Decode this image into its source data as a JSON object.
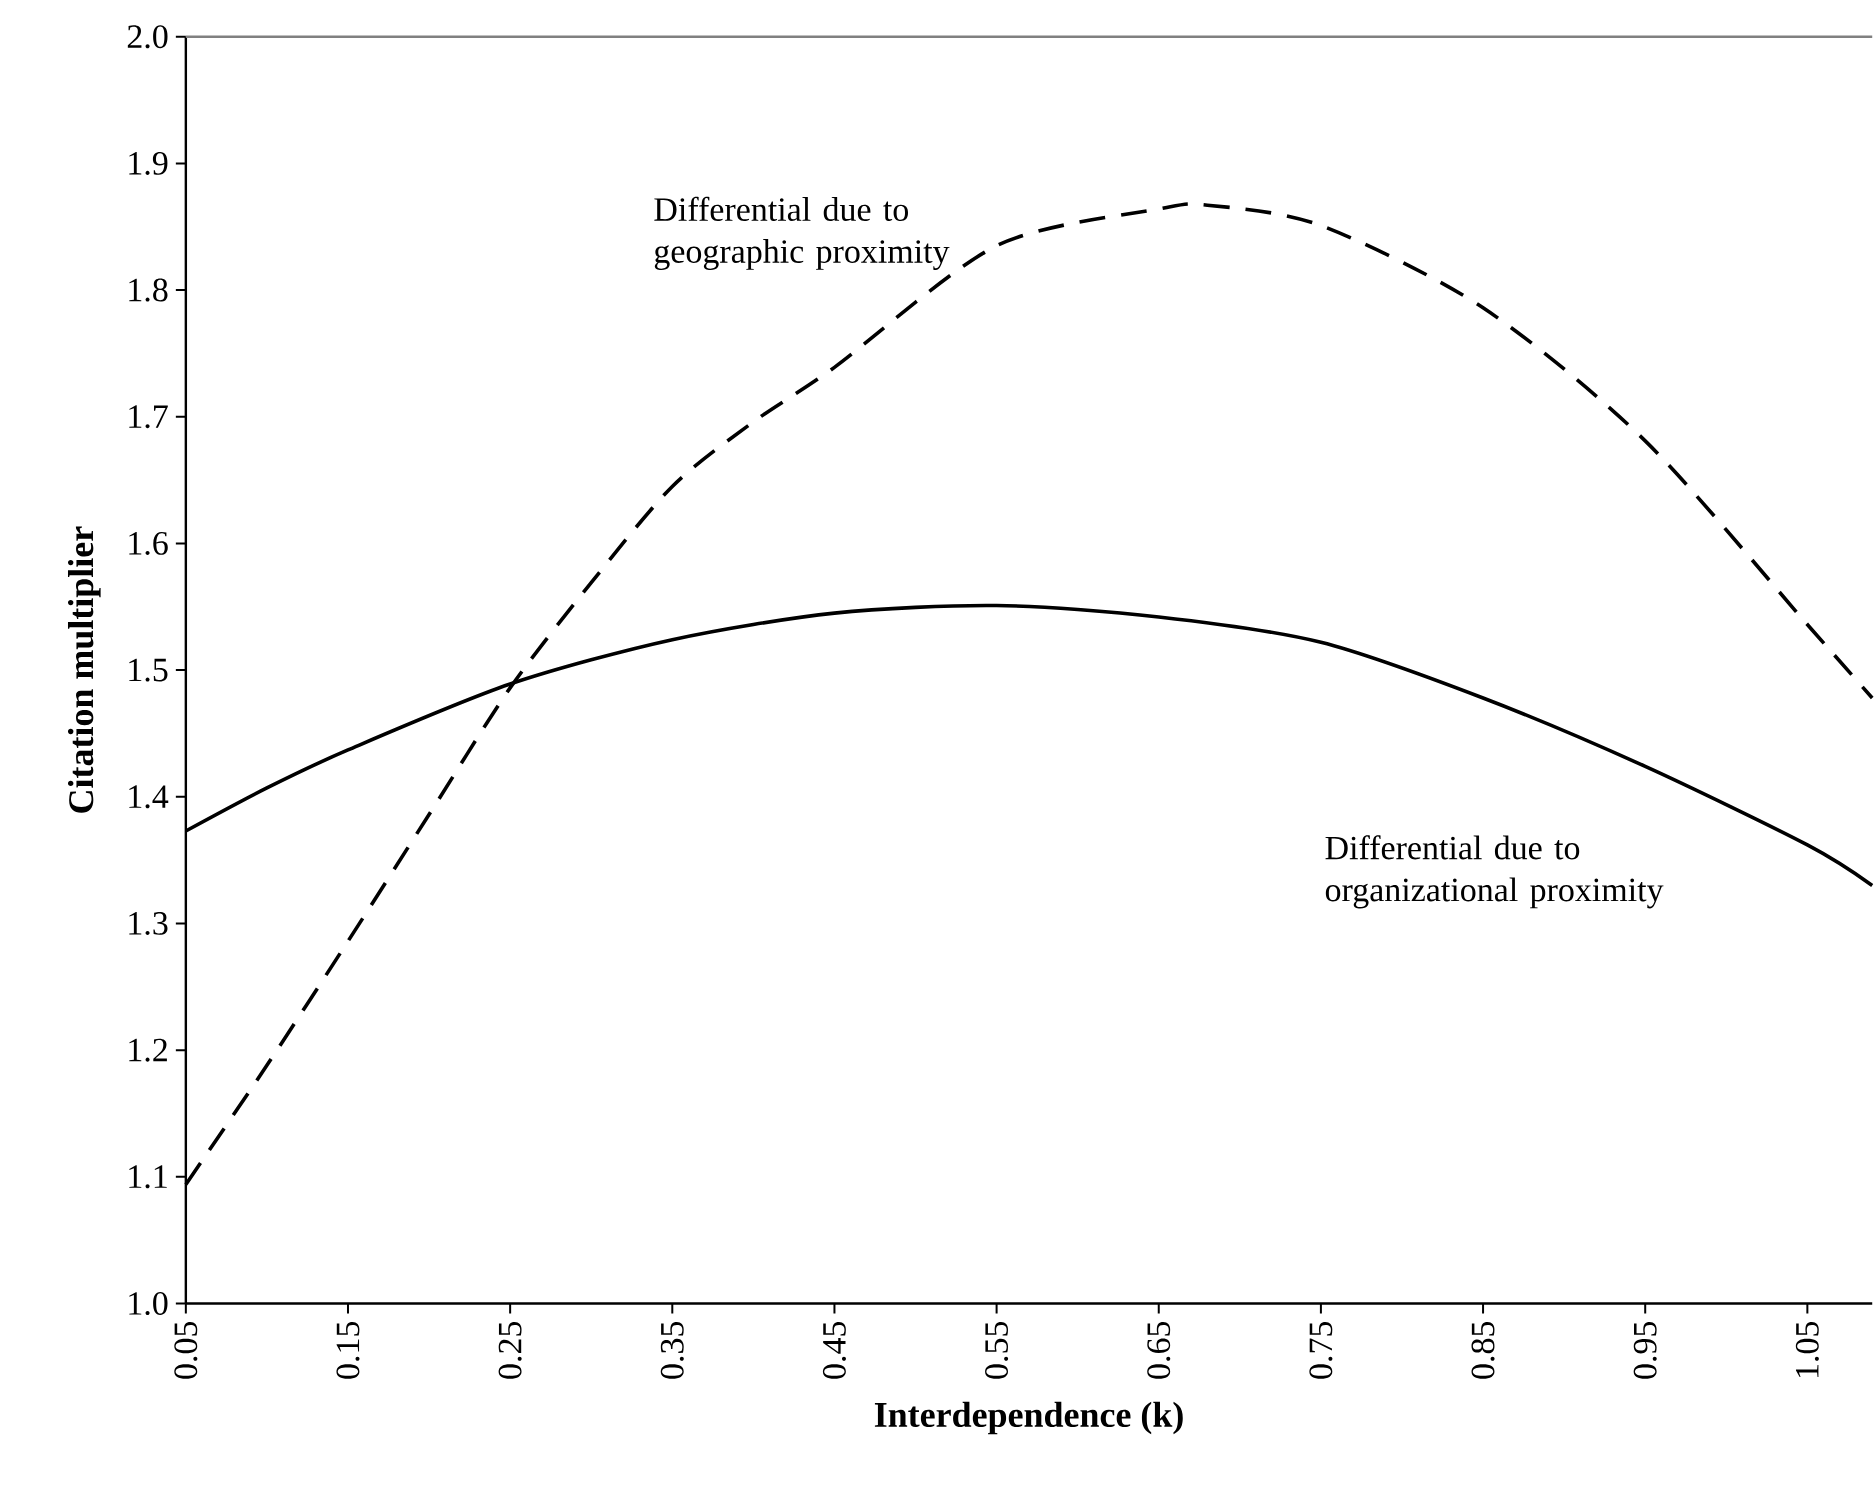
{
  "chart_data": {
    "type": "line",
    "xlabel": "Interdependence (k)",
    "ylabel": "Citation multiplier",
    "xlim": [
      0.05,
      1.09
    ],
    "ylim": [
      1.0,
      2.0
    ],
    "xticks": [
      0.05,
      0.15,
      0.25,
      0.35,
      0.45,
      0.55,
      0.65,
      0.75,
      0.85,
      0.95,
      1.05
    ],
    "yticks": [
      {
        "value": 1.0,
        "label": "1.0"
      },
      1.1,
      1.2,
      1.3,
      1.4,
      1.5,
      1.6,
      1.7,
      1.8,
      1.9,
      {
        "value": 2.0,
        "label": "2.0"
      }
    ],
    "legend": false,
    "grid": false,
    "marker": "none",
    "series": [
      {
        "name": "Differential due to geographic proximity",
        "color": "#000000",
        "line_style": "dashed",
        "x": [
          0.05,
          0.1,
          0.15,
          0.2,
          0.25,
          0.3,
          0.35,
          0.4,
          0.45,
          0.55,
          0.65,
          0.68,
          0.75,
          0.85,
          0.95,
          1.05,
          1.09
        ],
        "values": [
          1.094,
          1.188,
          1.286,
          1.386,
          1.486,
          1.569,
          1.645,
          1.696,
          1.739,
          1.835,
          1.864,
          1.867,
          1.851,
          1.786,
          1.681,
          1.536,
          1.478
        ]
      },
      {
        "name": "Differential due to organizational proximity",
        "color": "#000000",
        "line_style": "solid",
        "x": [
          0.05,
          0.1,
          0.15,
          0.25,
          0.35,
          0.45,
          0.55,
          0.65,
          0.75,
          0.85,
          0.95,
          1.05,
          1.09
        ],
        "values": [
          1.373,
          1.407,
          1.437,
          1.489,
          1.524,
          1.545,
          1.551,
          1.542,
          1.522,
          1.478,
          1.424,
          1.362,
          1.33
        ]
      }
    ]
  }
}
